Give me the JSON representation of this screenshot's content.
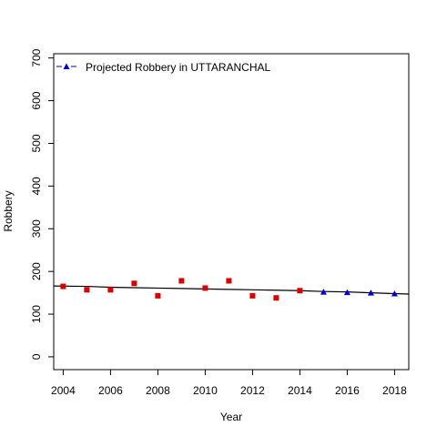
{
  "chart_data": {
    "type": "scatter",
    "title": "",
    "xlabel": "Year",
    "ylabel": "Robbery",
    "xlim": [
      2003.6,
      2018.6
    ],
    "ylim": [
      -30,
      710
    ],
    "x_ticks": [
      2004,
      2006,
      2008,
      2010,
      2012,
      2014,
      2016,
      2018
    ],
    "y_ticks": [
      0,
      100,
      200,
      300,
      400,
      500,
      600,
      700
    ],
    "grid": false,
    "legend_position": "top-left",
    "series": [
      {
        "name": "",
        "kind": "observed",
        "marker": "square",
        "color": "#dd0000",
        "x": [
          2004,
          2005,
          2006,
          2007,
          2008,
          2009,
          2010,
          2011,
          2012,
          2013,
          2014
        ],
        "y": [
          165,
          157,
          157,
          172,
          143,
          178,
          161,
          178,
          143,
          138,
          155
        ]
      },
      {
        "name": "Projected Robbery in UTTARANCHAL",
        "kind": "projected",
        "marker": "triangle",
        "color": "#0000cc",
        "x": [
          2015,
          2016,
          2017,
          2018
        ],
        "y": [
          152,
          151,
          150,
          148
        ]
      },
      {
        "name": "",
        "kind": "trend",
        "marker": "line",
        "color": "#000000",
        "x": [
          2003.6,
          2005,
          2006,
          2007,
          2008,
          2009,
          2010,
          2011,
          2012,
          2013,
          2014,
          2015,
          2016,
          2017,
          2018,
          2018.6
        ],
        "y": [
          166,
          165,
          163,
          162,
          161,
          160,
          159,
          158,
          157,
          156,
          155,
          153,
          152,
          150,
          148,
          147
        ]
      }
    ]
  }
}
